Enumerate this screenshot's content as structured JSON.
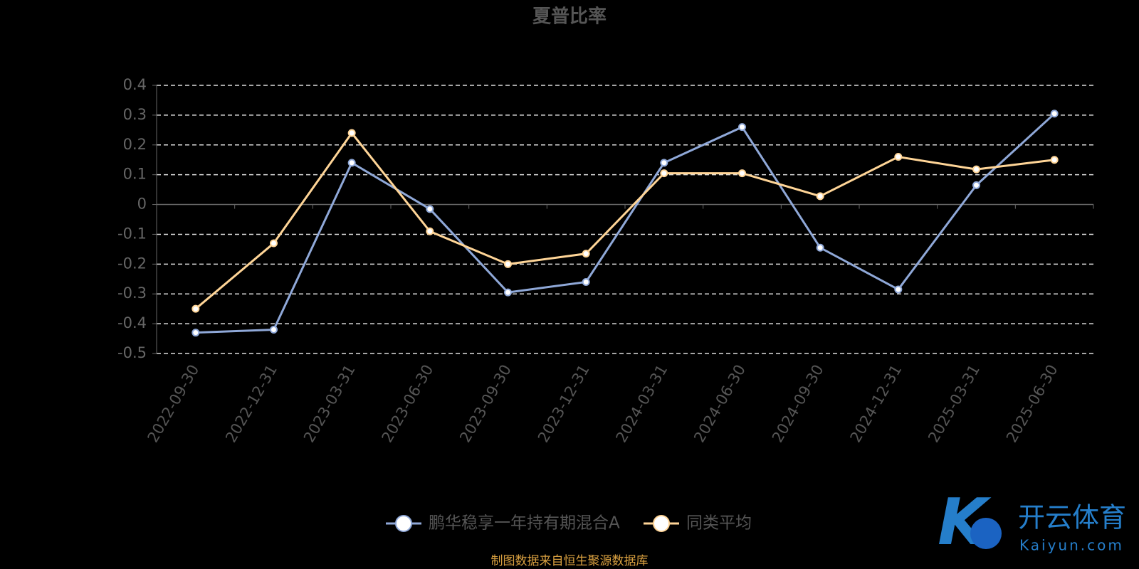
{
  "chart_data": {
    "type": "line",
    "title": "夏普比率",
    "categories": [
      "2022-09-30",
      "2022-12-31",
      "2023-03-31",
      "2023-06-30",
      "2023-09-30",
      "2023-12-31",
      "2024-03-31",
      "2024-06-30",
      "2024-09-30",
      "2024-12-31",
      "2025-03-31",
      "2025-06-30"
    ],
    "series": [
      {
        "name": "鹏华稳享一年持有期混合A",
        "color": "#8fa8d8",
        "values": [
          -0.43,
          -0.42,
          0.14,
          -0.015,
          -0.295,
          -0.26,
          0.14,
          0.26,
          -0.145,
          -0.285,
          0.065,
          0.305
        ]
      },
      {
        "name": "同类平均",
        "color": "#ffd597",
        "values": [
          -0.35,
          -0.13,
          0.24,
          -0.09,
          -0.2,
          -0.165,
          0.105,
          0.105,
          0.028,
          0.16,
          0.118,
          0.15
        ]
      }
    ],
    "ylim": [
      -0.5,
      0.4
    ],
    "yticks": [
      0.4,
      0.3,
      0.2,
      0.1,
      0,
      -0.1,
      -0.2,
      -0.3,
      -0.4,
      -0.5
    ],
    "grid": true,
    "source": "制图数据来自恒生聚源数据库",
    "watermark": {
      "brand": "开云体育",
      "site": "Kaiyun.com"
    }
  }
}
